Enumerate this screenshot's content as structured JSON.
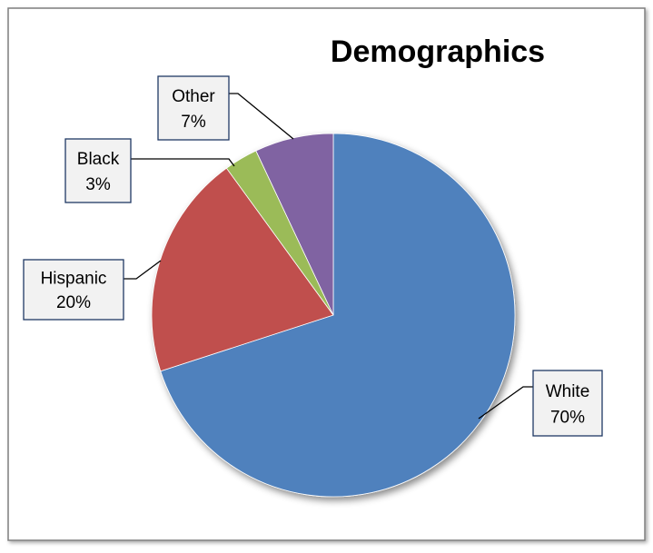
{
  "chart_data": {
    "type": "pie",
    "title": "Demographics",
    "slices": [
      {
        "label": "White",
        "percent_label": "70%",
        "value": 70,
        "color": "#4F81BD"
      },
      {
        "label": "Hispanic",
        "percent_label": "20%",
        "value": 20,
        "color": "#C0504D"
      },
      {
        "label": "Black",
        "percent_label": "3%",
        "value": 3,
        "color": "#9BBB59"
      },
      {
        "label": "Other",
        "percent_label": "7%",
        "value": 7,
        "color": "#8064A2"
      }
    ],
    "start_angle_deg": -90,
    "direction": "clockwise",
    "legend": "none",
    "data_labels": "callout-boxes",
    "colors": {
      "frame_border": "#7F7F7F",
      "label_box_fill": "#F2F2F2",
      "label_box_border": "#1F3864"
    }
  }
}
